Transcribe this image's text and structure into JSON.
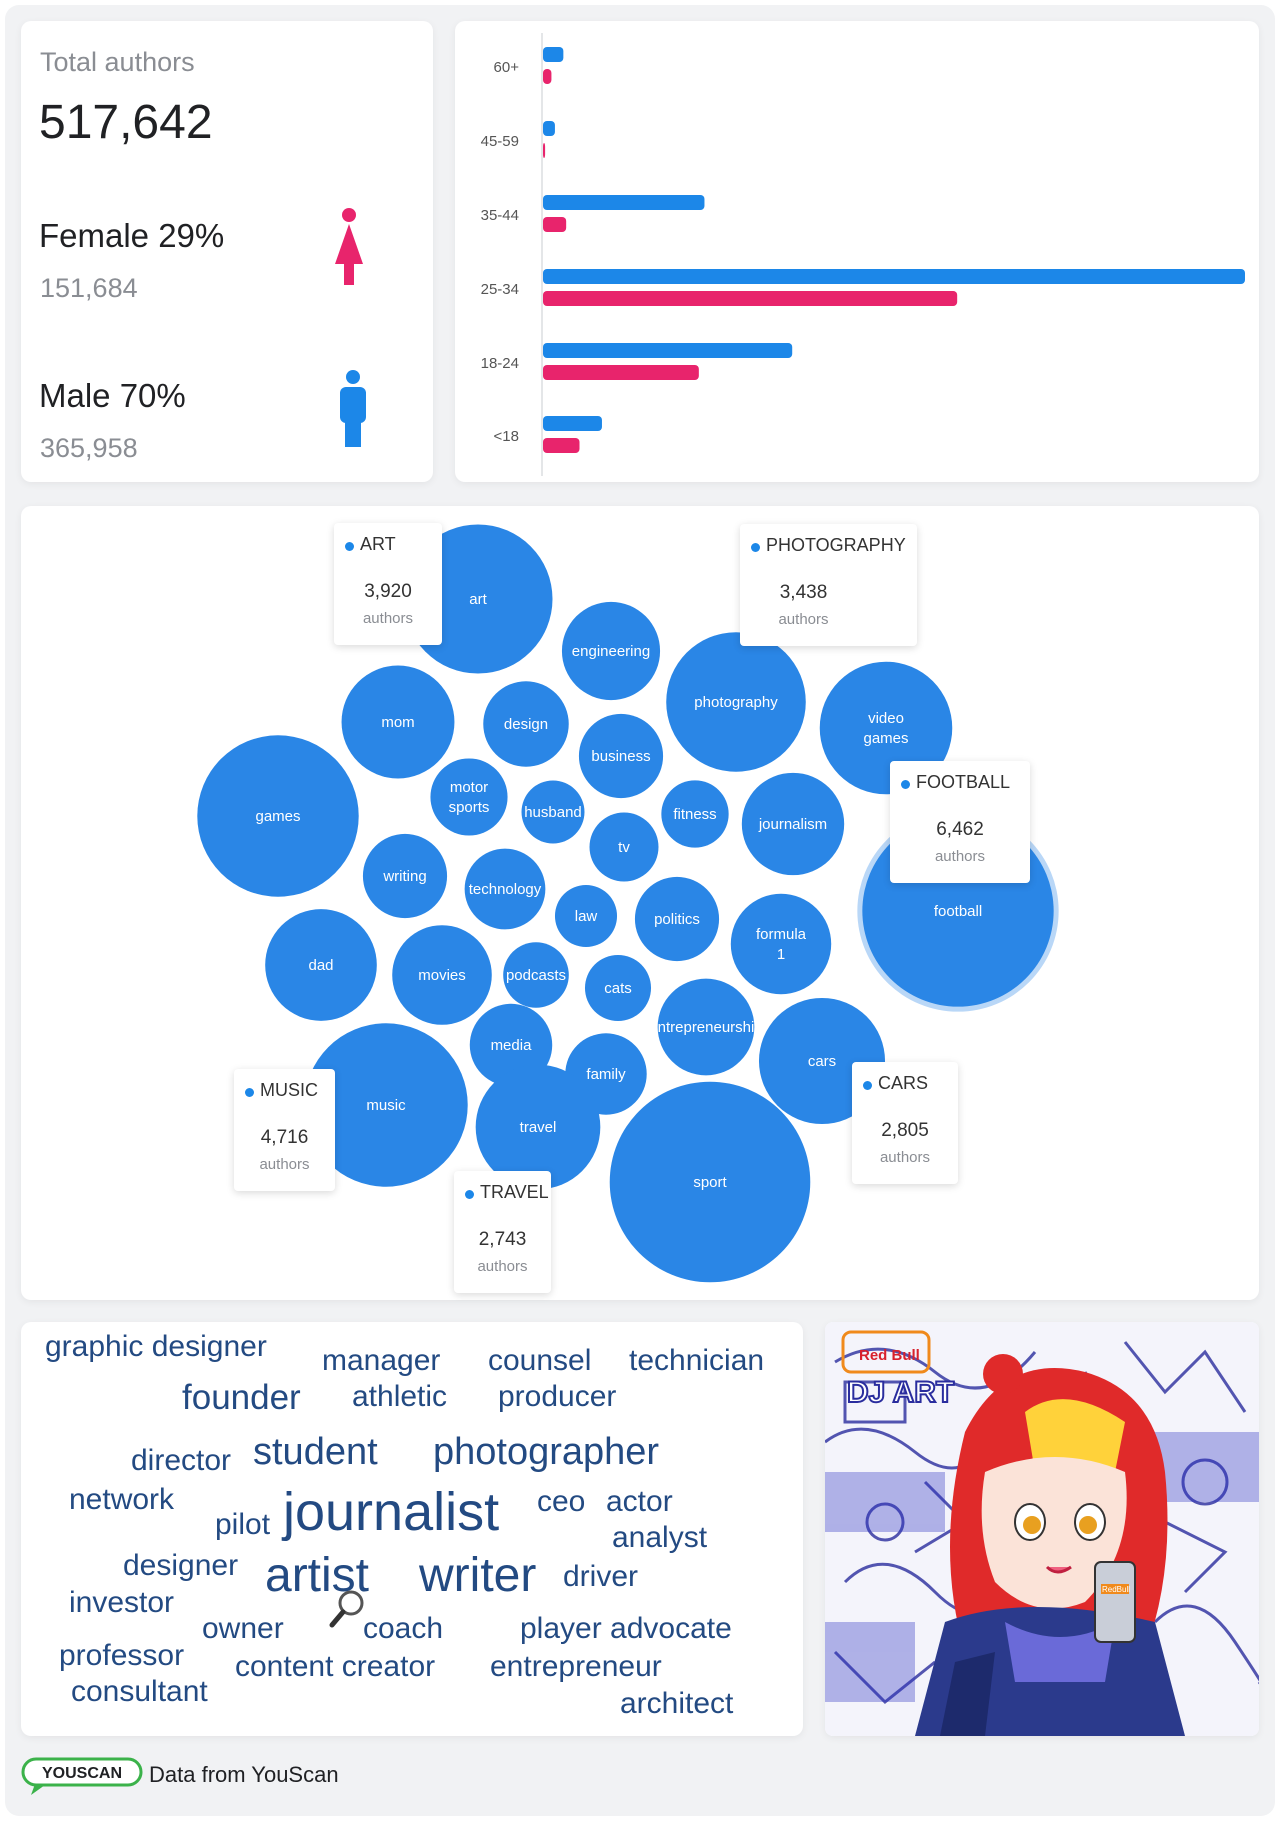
{
  "totals": {
    "label": "Total authors",
    "value": "517,642",
    "female": {
      "title": "Female 29%",
      "count": "151,684",
      "color": "#e8246c"
    },
    "male": {
      "title": "Male 70%",
      "count": "365,958",
      "color": "#1c87e8"
    }
  },
  "chart_data": [
    {
      "type": "bar",
      "orientation": "horizontal",
      "categories": [
        "60+",
        "45-59",
        "35-44",
        "25-34",
        "18-24",
        "<18"
      ],
      "series": [
        {
          "name": "",
          "color": "#1c87e8",
          "values": [
            2.9,
            1.7,
            23,
            100,
            35.5,
            8.4
          ]
        },
        {
          "name": "",
          "color": "#e8246c",
          "values": [
            1.2,
            0.3,
            3.3,
            59,
            22.2,
            5.2
          ]
        }
      ],
      "xlim": [
        0,
        100
      ]
    },
    {
      "type": "bubble",
      "bubble_color": "#2a86e6",
      "bubbles": [
        {
          "label": "art",
          "authors": 3920
        },
        {
          "label": "engineering",
          "authors": 1700
        },
        {
          "label": "photography",
          "authors": 3438
        },
        {
          "label": "video games",
          "authors": 3100
        },
        {
          "label": "mom",
          "authors": 2250
        },
        {
          "label": "design",
          "authors": 1290
        },
        {
          "label": "business",
          "authors": 1250
        },
        {
          "label": "games",
          "authors": 4600
        },
        {
          "label": "motor sports",
          "authors": 1050
        },
        {
          "label": "husband",
          "authors": 700
        },
        {
          "label": "fitness",
          "authors": 800
        },
        {
          "label": "journalism",
          "authors": 1850
        },
        {
          "label": "tv",
          "authors": 840
        },
        {
          "label": "football",
          "authors": 6462
        },
        {
          "label": "writing",
          "authors": 1250
        },
        {
          "label": "technology",
          "authors": 1150
        },
        {
          "label": "law",
          "authors": 680
        },
        {
          "label": "politics",
          "authors": 1250
        },
        {
          "label": "formula 1",
          "authors": 1780
        },
        {
          "label": "dad",
          "authors": 2200
        },
        {
          "label": "movies",
          "authors": 1750
        },
        {
          "label": "podcasts",
          "authors": 760
        },
        {
          "label": "cats",
          "authors": 770
        },
        {
          "label": "entrepreneurship",
          "authors": 1650
        },
        {
          "label": "cars",
          "authors": 2805
        },
        {
          "label": "media",
          "authors": 1200
        },
        {
          "label": "family",
          "authors": 1170
        },
        {
          "label": "music",
          "authors": 4716
        },
        {
          "label": "travel",
          "authors": 2743
        },
        {
          "label": "sport",
          "authors": 7100
        }
      ],
      "tooltips": [
        {
          "name": "ART",
          "value": "3,920",
          "unit": "authors"
        },
        {
          "name": "PHOTOGRAPHY",
          "value": "3,438",
          "unit": "authors"
        },
        {
          "name": "FOOTBALL",
          "value": "6,462",
          "unit": "authors"
        },
        {
          "name": "MUSIC",
          "value": "4,716",
          "unit": "authors"
        },
        {
          "name": "CARS",
          "value": "2,805",
          "unit": "authors"
        },
        {
          "name": "TRAVEL",
          "value": "2,743",
          "unit": "authors"
        }
      ]
    }
  ],
  "wordcloud": {
    "color": "#234a82",
    "words": [
      "graphic designer",
      "manager",
      "counsel",
      "technician",
      "founder",
      "athletic",
      "producer",
      "director",
      "student",
      "photographer",
      "network",
      "pilot",
      "journalist",
      "ceo",
      "actor",
      "analyst",
      "designer",
      "artist",
      "writer",
      "driver",
      "investor",
      "owner",
      "coach",
      "player advocate",
      "professor",
      "content creator",
      "entrepreneur",
      "consultant",
      "architect"
    ]
  },
  "image": {
    "badge_text": "Red Bull",
    "can_text": "RedBull"
  },
  "footer": {
    "logo": "YOUSCAN",
    "text": "Data from YouScan"
  }
}
